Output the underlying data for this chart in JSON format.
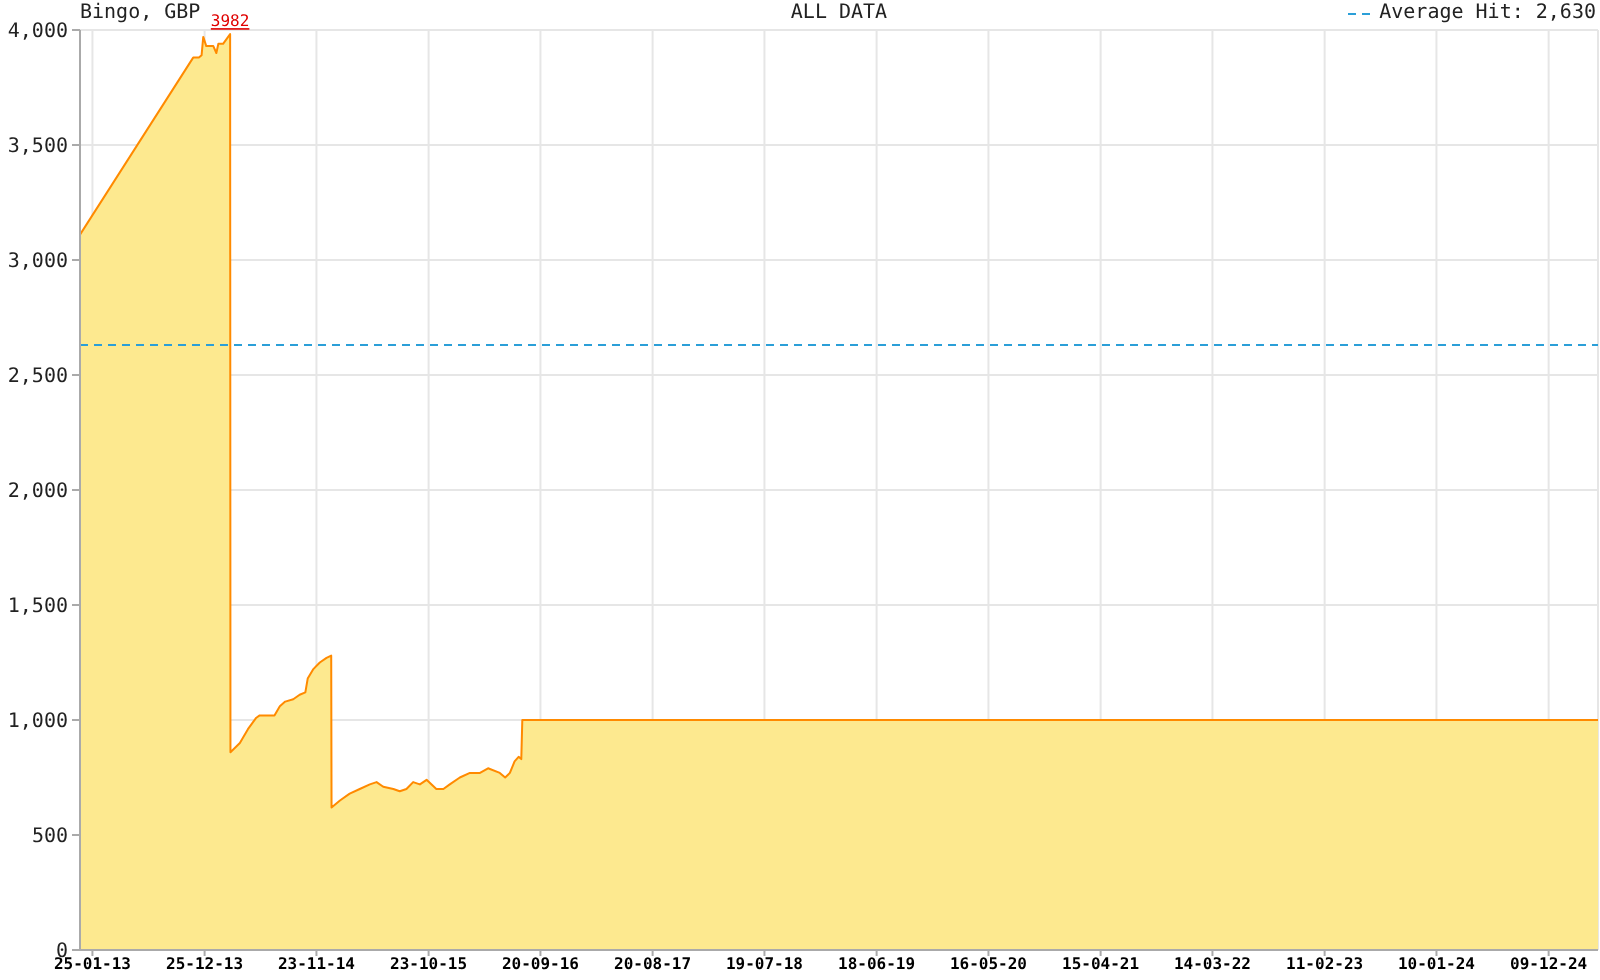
{
  "chart_data": {
    "type": "area",
    "title": "Bingo, GBP",
    "subtitle": "ALL DATA",
    "x": [
      "2012-12-19",
      "2013-11-21",
      "2013-12-08",
      "2013-12-16",
      "2013-12-21",
      "2013-12-30",
      "2014-01-20",
      "2014-01-29",
      "2014-02-04",
      "2014-02-18",
      "2014-03-11",
      "2014-03-12",
      "2014-04-09",
      "2014-05-03",
      "2014-05-28",
      "2014-06-07",
      "2014-07-21",
      "2014-08-06",
      "2014-08-22",
      "2014-09-15",
      "2014-10-04",
      "2014-10-21",
      "2014-10-28",
      "2014-11-13",
      "2014-12-03",
      "2014-12-23",
      "2015-01-06",
      "2015-01-07",
      "2015-02-01",
      "2015-03-02",
      "2015-04-01",
      "2015-05-01",
      "2015-05-21",
      "2015-06-10",
      "2015-07-10",
      "2015-07-29",
      "2015-08-18",
      "2015-09-07",
      "2015-09-27",
      "2015-10-17",
      "2015-11-15",
      "2015-12-06",
      "2015-12-25",
      "2016-01-24",
      "2016-02-23",
      "2016-03-24",
      "2016-04-17",
      "2016-05-22",
      "2016-06-07",
      "2016-06-21",
      "2016-07-05",
      "2016-07-17",
      "2016-07-25",
      "2016-07-28",
      "2025-05-05"
    ],
    "values": [
      3110,
      3880,
      3880,
      3890,
      3970,
      3930,
      3930,
      3900,
      3940,
      3940,
      3982,
      860,
      900,
      960,
      1010,
      1020,
      1020,
      1060,
      1080,
      1090,
      1110,
      1120,
      1180,
      1220,
      1250,
      1270,
      1280,
      620,
      650,
      680,
      700,
      720,
      730,
      710,
      700,
      690,
      700,
      730,
      720,
      740,
      700,
      700,
      720,
      750,
      770,
      770,
      790,
      770,
      750,
      770,
      820,
      840,
      830,
      1000,
      1000
    ],
    "color": "#fde98f",
    "xlim": [
      "2012-12-19",
      "2025-05-05"
    ],
    "xticks": [
      {
        "value": "2013-01-25",
        "label": "25-01-13"
      },
      {
        "value": "2013-12-25",
        "label": "25-12-13"
      },
      {
        "value": "2014-11-23",
        "label": "23-11-14"
      },
      {
        "value": "2015-10-23",
        "label": "23-10-15"
      },
      {
        "value": "2016-09-20",
        "label": "20-09-16"
      },
      {
        "value": "2017-08-20",
        "label": "20-08-17"
      },
      {
        "value": "2018-07-19",
        "label": "19-07-18"
      },
      {
        "value": "2019-06-18",
        "label": "18-06-19"
      },
      {
        "value": "2020-05-16",
        "label": "16-05-20"
      },
      {
        "value": "2021-04-15",
        "label": "15-04-21"
      },
      {
        "value": "2022-03-14",
        "label": "14-03-22"
      },
      {
        "value": "2023-02-11",
        "label": "11-02-23"
      },
      {
        "value": "2024-01-10",
        "label": "10-01-24"
      },
      {
        "value": "2024-12-09",
        "label": "09-12-24"
      }
    ],
    "ylim": [
      0,
      4000
    ],
    "yticks": [
      0,
      500,
      {
        "value": 1000,
        "label": "1,000"
      },
      {
        "value": 1500,
        "label": "1,500"
      },
      {
        "value": 2000,
        "label": "2,000"
      },
      {
        "value": 2500,
        "label": "2,500"
      },
      {
        "value": 3000,
        "label": "3,000"
      },
      {
        "value": 3500,
        "label": "3,500"
      },
      {
        "value": 4000,
        "label": "4,000"
      }
    ],
    "grid": true,
    "ref_lines": [
      {
        "axis": "y",
        "value": 2630,
        "label": "Average Hit: 2,630",
        "color": "#2b9fd8",
        "line_style": "dashed"
      }
    ],
    "annotations": [
      {
        "text": "3982",
        "x": "2014-03-11",
        "y": 3982
      }
    ]
  }
}
